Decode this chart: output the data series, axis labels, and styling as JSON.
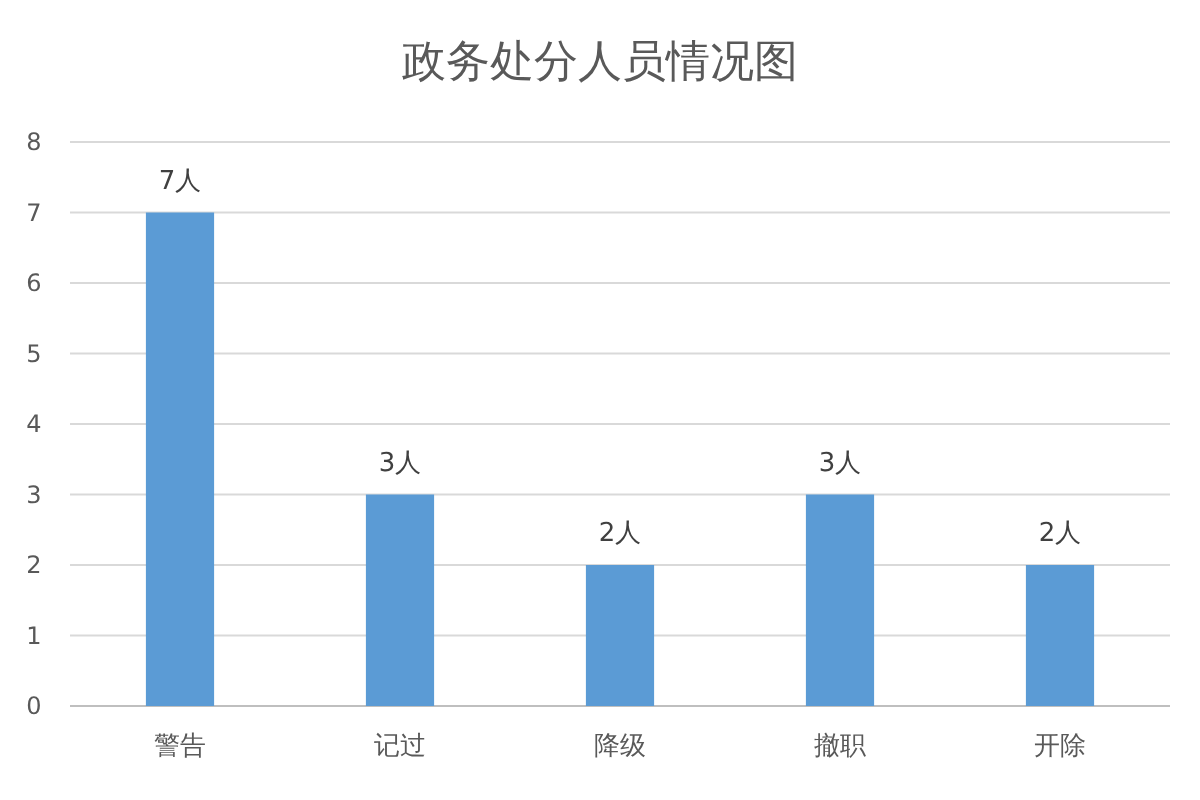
{
  "chart_data": {
    "type": "bar",
    "title": "政务处分人员情况图",
    "categories": [
      "警告",
      "记过",
      "降级",
      "撤职",
      "开除"
    ],
    "values": [
      7,
      3,
      2,
      3,
      2
    ],
    "value_labels": [
      "7人",
      "3人",
      "2人",
      "3人",
      "2人"
    ],
    "color": "#5b9bd5",
    "ylim": [
      0,
      8
    ],
    "yticks": [
      0,
      1,
      2,
      3,
      4,
      5,
      6,
      7,
      8
    ],
    "grid": "y"
  }
}
